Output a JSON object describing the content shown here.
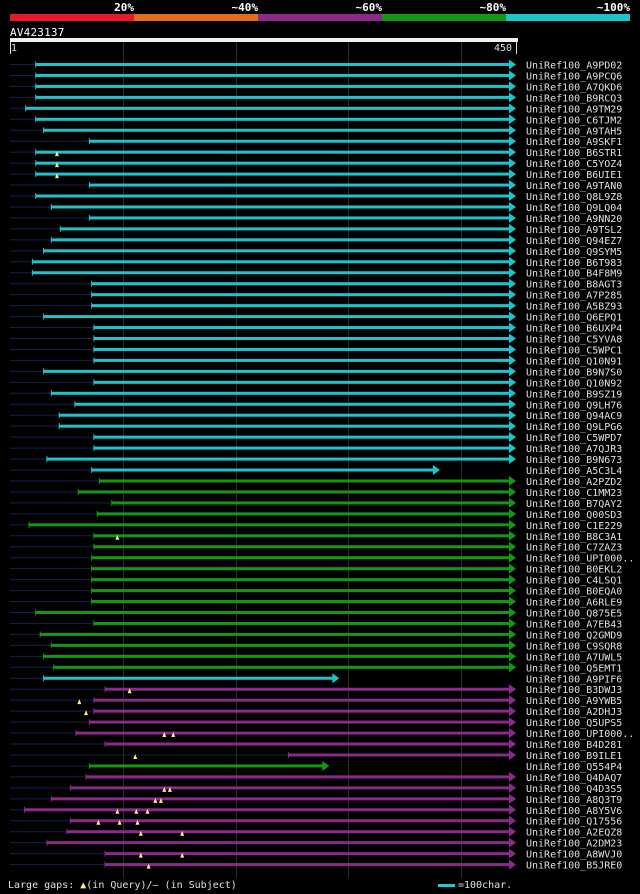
{
  "legend": {
    "segments": [
      {
        "label": "20%",
        "color": "#e8182a"
      },
      {
        "label": "~40%",
        "color": "#e06d1c"
      },
      {
        "label": "~60%",
        "color": "#8c2a8c"
      },
      {
        "label": "~80%",
        "color": "#149814"
      },
      {
        "label": "~100%",
        "color": "#1ec4cc"
      }
    ]
  },
  "query": {
    "id": "AV423137",
    "start": "1",
    "end": "450",
    "length": 450
  },
  "footer": {
    "gaps_prefix": "Large gaps: ",
    "gaps_query_icon": "▲",
    "gaps_text": "(in Query)/– (in Subject)",
    "scale_text": "=100char."
  },
  "chart_data": {
    "type": "alignment",
    "query_range": [
      1,
      450
    ],
    "hits": [
      {
        "name": "UniRef100_A9PD02",
        "start": 24,
        "end": 450,
        "identity": "~100%",
        "gaps": []
      },
      {
        "name": "UniRef100_A9PCQ6",
        "start": 24,
        "end": 450,
        "identity": "~100%",
        "gaps": []
      },
      {
        "name": "UniRef100_A7QKD6",
        "start": 24,
        "end": 450,
        "identity": "~100%",
        "gaps": []
      },
      {
        "name": "UniRef100_B9RCQ3",
        "start": 24,
        "end": 450,
        "identity": "~100%",
        "gaps": []
      },
      {
        "name": "UniRef100_A9TM29",
        "start": 15,
        "end": 450,
        "identity": "~100%",
        "gaps": []
      },
      {
        "name": "UniRef100_C6TJM2",
        "start": 24,
        "end": 450,
        "identity": "~100%",
        "gaps": []
      },
      {
        "name": "UniRef100_A9TAH5",
        "start": 31,
        "end": 450,
        "identity": "~100%",
        "gaps": []
      },
      {
        "name": "UniRef100_A9SKF1",
        "start": 72,
        "end": 450,
        "identity": "~100%",
        "gaps": []
      },
      {
        "name": "UniRef100_B6STR1",
        "start": 24,
        "end": 450,
        "identity": "~100%",
        "gaps": [
          43
        ]
      },
      {
        "name": "UniRef100_C5YOZ4",
        "start": 24,
        "end": 450,
        "identity": "~100%",
        "gaps": [
          43
        ]
      },
      {
        "name": "UniRef100_B6UIE1",
        "start": 24,
        "end": 450,
        "identity": "~100%",
        "gaps": [
          43
        ]
      },
      {
        "name": "UniRef100_A9TAN0",
        "start": 72,
        "end": 450,
        "identity": "~100%",
        "gaps": []
      },
      {
        "name": "UniRef100_Q8L9Z8",
        "start": 24,
        "end": 450,
        "identity": "~100%",
        "gaps": []
      },
      {
        "name": "UniRef100_Q9LQ04",
        "start": 38,
        "end": 450,
        "identity": "~100%",
        "gaps": []
      },
      {
        "name": "UniRef100_A9NN20",
        "start": 72,
        "end": 450,
        "identity": "~100%",
        "gaps": []
      },
      {
        "name": "UniRef100_A9TSL2",
        "start": 46,
        "end": 450,
        "identity": "~100%",
        "gaps": []
      },
      {
        "name": "UniRef100_Q94EZ7",
        "start": 38,
        "end": 450,
        "identity": "~100%",
        "gaps": []
      },
      {
        "name": "UniRef100_Q9SYM5",
        "start": 31,
        "end": 450,
        "identity": "~100%",
        "gaps": []
      },
      {
        "name": "UniRef100_B6T983",
        "start": 21,
        "end": 450,
        "identity": "~100%",
        "gaps": []
      },
      {
        "name": "UniRef100_B4F8M9",
        "start": 21,
        "end": 450,
        "identity": "~100%",
        "gaps": []
      },
      {
        "name": "UniRef100_B8AGT3",
        "start": 74,
        "end": 450,
        "identity": "~100%",
        "gaps": []
      },
      {
        "name": "UniRef100_A7P285",
        "start": 74,
        "end": 450,
        "identity": "~100%",
        "gaps": []
      },
      {
        "name": "UniRef100_A5BZ93",
        "start": 74,
        "end": 450,
        "identity": "~100%",
        "gaps": []
      },
      {
        "name": "UniRef100_Q6EPQ1",
        "start": 31,
        "end": 450,
        "identity": "~100%",
        "gaps": []
      },
      {
        "name": "UniRef100_B6UXP4",
        "start": 76,
        "end": 450,
        "identity": "~100%",
        "gaps": []
      },
      {
        "name": "UniRef100_C5YVA8",
        "start": 76,
        "end": 450,
        "identity": "~100%",
        "gaps": []
      },
      {
        "name": "UniRef100_C5WPC1",
        "start": 76,
        "end": 450,
        "identity": "~100%",
        "gaps": []
      },
      {
        "name": "UniRef100_Q10N91",
        "start": 76,
        "end": 450,
        "identity": "~100%",
        "gaps": []
      },
      {
        "name": "UniRef100_B9N7S0",
        "start": 31,
        "end": 450,
        "identity": "~100%",
        "gaps": []
      },
      {
        "name": "UniRef100_Q10N92",
        "start": 76,
        "end": 450,
        "identity": "~100%",
        "gaps": []
      },
      {
        "name": "UniRef100_B9SZ19",
        "start": 38,
        "end": 450,
        "identity": "~100%",
        "gaps": []
      },
      {
        "name": "UniRef100_Q9LH76",
        "start": 59,
        "end": 450,
        "identity": "~100%",
        "gaps": []
      },
      {
        "name": "UniRef100_Q94AC9",
        "start": 45,
        "end": 450,
        "identity": "~100%",
        "gaps": []
      },
      {
        "name": "UniRef100_Q9LPG6",
        "start": 45,
        "end": 450,
        "identity": "~100%",
        "gaps": []
      },
      {
        "name": "UniRef100_C5WPD7",
        "start": 76,
        "end": 450,
        "identity": "~100%",
        "gaps": []
      },
      {
        "name": "UniRef100_A7QJR3",
        "start": 76,
        "end": 450,
        "identity": "~100%",
        "gaps": []
      },
      {
        "name": "UniRef100_B9N673",
        "start": 34,
        "end": 450,
        "identity": "~100%",
        "gaps": []
      },
      {
        "name": "UniRef100_A5C3L4",
        "start": 74,
        "end": 382,
        "identity": "~100%",
        "gaps": []
      },
      {
        "name": "UniRef100_A2PZD2",
        "start": 81,
        "end": 450,
        "identity": "~80%",
        "gaps": []
      },
      {
        "name": "UniRef100_C1MM23",
        "start": 62,
        "end": 450,
        "identity": "~80%",
        "gaps": []
      },
      {
        "name": "UniRef100_B7QAY2",
        "start": 92,
        "end": 450,
        "identity": "~80%",
        "gaps": []
      },
      {
        "name": "UniRef100_Q00SD3",
        "start": 79,
        "end": 450,
        "identity": "~80%",
        "gaps": []
      },
      {
        "name": "UniRef100_C1E229",
        "start": 18,
        "end": 450,
        "identity": "~80%",
        "gaps": []
      },
      {
        "name": "UniRef100_B8C3A1",
        "start": 76,
        "end": 450,
        "identity": "~80%",
        "gaps": [
          97
        ]
      },
      {
        "name": "UniRef100_C7ZAZ3",
        "start": 76,
        "end": 450,
        "identity": "~80%",
        "gaps": []
      },
      {
        "name": "UniRef100_UPI000..",
        "start": 74,
        "end": 450,
        "identity": "~80%",
        "gaps": []
      },
      {
        "name": "UniRef100_B0EKL2",
        "start": 74,
        "end": 450,
        "identity": "~80%",
        "gaps": []
      },
      {
        "name": "UniRef100_C4LSQ1",
        "start": 74,
        "end": 450,
        "identity": "~80%",
        "gaps": []
      },
      {
        "name": "UniRef100_B0EQA0",
        "start": 74,
        "end": 450,
        "identity": "~80%",
        "gaps": []
      },
      {
        "name": "UniRef100_A6RLE9",
        "start": 74,
        "end": 450,
        "identity": "~80%",
        "gaps": []
      },
      {
        "name": "UniRef100_Q875E5",
        "start": 24,
        "end": 450,
        "identity": "~80%",
        "gaps": []
      },
      {
        "name": "UniRef100_A7EB43",
        "start": 76,
        "end": 450,
        "identity": "~80%",
        "gaps": []
      },
      {
        "name": "UniRef100_Q2GMD9",
        "start": 28,
        "end": 450,
        "identity": "~80%",
        "gaps": []
      },
      {
        "name": "UniRef100_C9SQR8",
        "start": 38,
        "end": 450,
        "identity": "~80%",
        "gaps": []
      },
      {
        "name": "UniRef100_A7UWL5",
        "start": 31,
        "end": 450,
        "identity": "~80%",
        "gaps": []
      },
      {
        "name": "UniRef100_Q5EMT1",
        "start": 40,
        "end": 450,
        "identity": "~80%",
        "gaps": []
      },
      {
        "name": "UniRef100_A9PIF6",
        "start": 31,
        "end": 292,
        "identity": "~100%",
        "gaps": []
      },
      {
        "name": "UniRef100_B3DWJ3",
        "start": 86,
        "end": 450,
        "identity": "~60%",
        "gaps": [
          108
        ]
      },
      {
        "name": "UniRef100_A9YWB5",
        "start": 76,
        "end": 450,
        "identity": "~60%",
        "gaps": [
          63
        ]
      },
      {
        "name": "UniRef100_A2DHJ3",
        "start": 76,
        "end": 450,
        "identity": "~60%",
        "gaps": [
          69
        ]
      },
      {
        "name": "UniRef100_Q5UPS5",
        "start": 72,
        "end": 450,
        "identity": "~60%",
        "gaps": []
      },
      {
        "name": "UniRef100_UPI000..",
        "start": 60,
        "end": 450,
        "identity": "~60%",
        "gaps": [
          139,
          147
        ]
      },
      {
        "name": "UniRef100_B4D281",
        "start": 86,
        "end": 450,
        "identity": "~60%",
        "gaps": []
      },
      {
        "name": "UniRef100_B9ILE1",
        "start": 250,
        "end": 450,
        "identity": "~60%",
        "gaps": [
          113
        ]
      },
      {
        "name": "UniRef100_Q554P4",
        "start": 72,
        "end": 283,
        "identity": "~80%",
        "gaps": []
      },
      {
        "name": "UniRef100_Q4DAQ7",
        "start": 69,
        "end": 450,
        "identity": "~60%",
        "gaps": []
      },
      {
        "name": "UniRef100_Q4D3S5",
        "start": 55,
        "end": 450,
        "identity": "~60%",
        "gaps": [
          139,
          144
        ]
      },
      {
        "name": "UniRef100_A8Q3T9",
        "start": 38,
        "end": 450,
        "identity": "~60%",
        "gaps": [
          131,
          136
        ]
      },
      {
        "name": "UniRef100_A8Y5V6",
        "start": 14,
        "end": 450,
        "identity": "~60%",
        "gaps": [
          97,
          114,
          124
        ]
      },
      {
        "name": "UniRef100_Q17556",
        "start": 55,
        "end": 450,
        "identity": "~60%",
        "gaps": [
          80,
          99,
          115
        ]
      },
      {
        "name": "UniRef100_A2EQZ8",
        "start": 52,
        "end": 450,
        "identity": "~60%",
        "gaps": [
          118,
          155
        ]
      },
      {
        "name": "UniRef100_A2DM23",
        "start": 34,
        "end": 450,
        "identity": "~60%",
        "gaps": []
      },
      {
        "name": "UniRef100_A8WVJ0",
        "start": 86,
        "end": 450,
        "identity": "~60%",
        "gaps": [
          118,
          155
        ]
      },
      {
        "name": "UniRef100_B5JRE0",
        "start": 86,
        "end": 450,
        "identity": "~60%",
        "gaps": [
          125
        ]
      }
    ]
  }
}
